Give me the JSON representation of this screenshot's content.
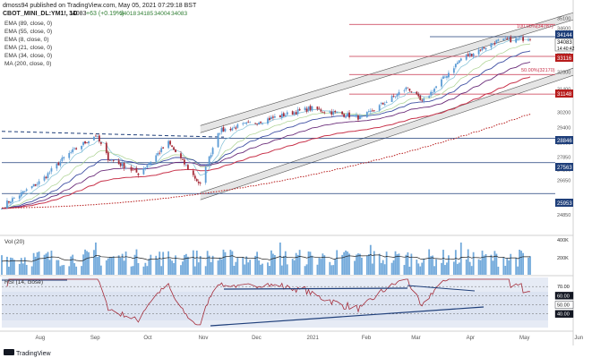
{
  "header": {
    "line1": "dmoss94 published on TradingView.com, May 05, 2021 07:29:18 BST",
    "symbol": "CBOT_MINI_DL:YM1!, 1D",
    "last": "34083",
    "change": "+63 (+0.19%)",
    "ohlc": [
      "34018",
      "34185",
      "34004",
      "34083"
    ]
  },
  "indicators": [
    "EMA (89, close, 0)",
    "EMA (55, close, 0)",
    "EMA (8, close, 0)",
    "EMA (21, close, 0)",
    "EMA (34, close, 0)",
    "MA (200, close, 0)"
  ],
  "panes": {
    "vol_label": "Vol (20)",
    "rsi_label": "RSI (14, close)"
  },
  "fib": {
    "level_100": "100.00%(34787)",
    "level_50": "50.00%(32170)"
  },
  "badges": {
    "price": "34144",
    "last": "34083",
    "time": "14:40:42",
    "l33116": "33116",
    "l31148": "31148",
    "l28846": "28846",
    "l27563": "27563",
    "l25953": "25953"
  },
  "footer": {
    "brand": "TradingView"
  },
  "colors": {
    "up": "#5b9bd5",
    "down": "#a62d3a",
    "ema8": "#7fbfd6",
    "ema21": "#a9d18e",
    "ema34": "#3f4fa3",
    "ema55": "#6b2d7a",
    "ema89": "#c8324a",
    "ma200": "#b71c1c",
    "level_line": "#1f3f7a",
    "channel": "#9e9e9e",
    "rsi": "#a62d3a"
  },
  "chart_data": {
    "type": "candlestick",
    "ylim": [
      24000,
      35500
    ],
    "y_ticks": [
      "35100",
      "34600",
      "34100",
      "33200",
      "32300",
      "31400",
      "30200",
      "29400",
      "28600",
      "27850",
      "27200",
      "26650",
      "25600",
      "24850"
    ],
    "x_ticks": [
      "Aug",
      "Sep",
      "Oct",
      "Nov",
      "Dec",
      "2021",
      "Feb",
      "Mar",
      "Apr",
      "May",
      "Jun"
    ],
    "horizontal_levels": [
      34144,
      33116,
      31148,
      28846,
      27563,
      25953
    ],
    "fib_levels": [
      {
        "label": "100.00%(34787)",
        "value": 34787
      },
      {
        "label": "50.00%(32170)",
        "value": 32170
      }
    ],
    "vol_ticks": [
      "400K",
      "200K"
    ],
    "rsi_ticks": [
      "70.00",
      "60.00",
      "50.00",
      "40.00"
    ],
    "rsi_levels": [
      70,
      60,
      50,
      40
    ],
    "anchors": [
      {
        "date": "2020-07-10",
        "value": 25300
      },
      {
        "date": "2020-08-01",
        "value": 26600
      },
      {
        "date": "2020-08-15",
        "value": 27900
      },
      {
        "date": "2020-09-01",
        "value": 29000
      },
      {
        "date": "2020-09-08",
        "value": 27800
      },
      {
        "date": "2020-09-25",
        "value": 27000
      },
      {
        "date": "2020-10-12",
        "value": 28600
      },
      {
        "date": "2020-10-30",
        "value": 26400
      },
      {
        "date": "2020-11-09",
        "value": 29200
      },
      {
        "date": "2020-12-01",
        "value": 29700
      },
      {
        "date": "2020-12-31",
        "value": 30400
      },
      {
        "date": "2021-01-29",
        "value": 29900
      },
      {
        "date": "2021-02-24",
        "value": 31500
      },
      {
        "date": "2021-03-04",
        "value": 30700
      },
      {
        "date": "2021-03-26",
        "value": 33000
      },
      {
        "date": "2021-04-15",
        "value": 33900
      },
      {
        "date": "2021-05-04",
        "value": 34083
      }
    ]
  }
}
